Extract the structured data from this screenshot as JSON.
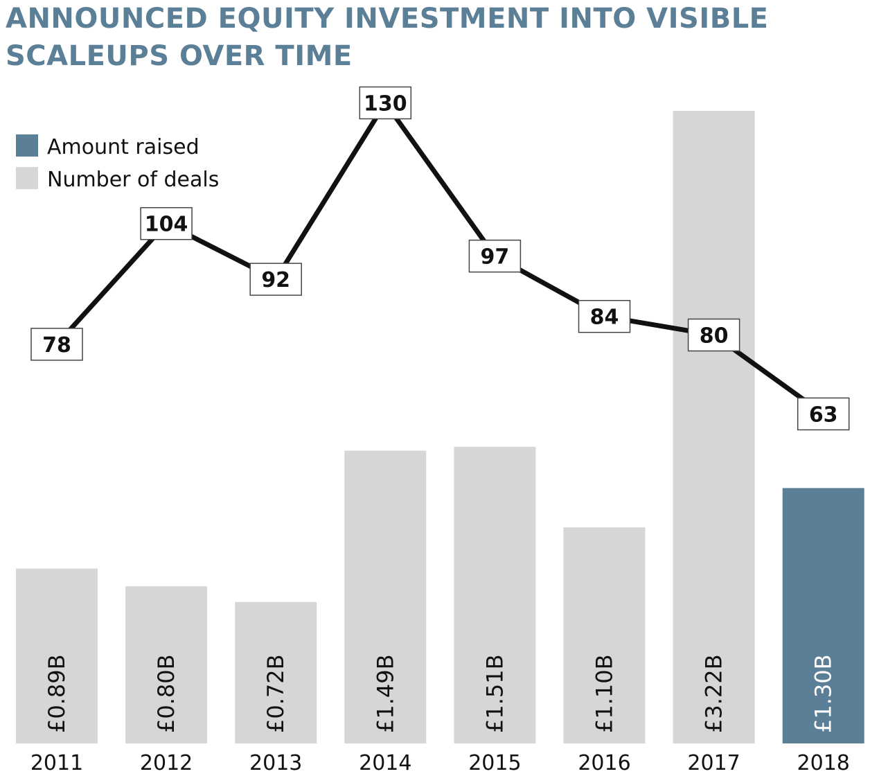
{
  "title": {
    "line1": "ANNOUNCED  EQUITY INVESTMENT INTO VISIBLE",
    "line2": "SCALEUPS OVER TIME"
  },
  "colors": {
    "title": "#5b7f96",
    "amount": "#5b7f96",
    "grey_bar": "#d6d6d6",
    "line": "#111111"
  },
  "chart_data": {
    "type": "bar",
    "categories": [
      "2011",
      "2012",
      "2013",
      "2014",
      "2015",
      "2016",
      "2017",
      "2018"
    ],
    "series": [
      {
        "name": "Amount raised",
        "type": "bar",
        "values": [
          0.89,
          0.8,
          0.72,
          1.49,
          1.51,
          1.1,
          3.22,
          1.3
        ],
        "labels": [
          "£0.89B",
          "£0.80B",
          "£0.72B",
          "£1.49B",
          "£1.51B",
          "£1.10B",
          "£3.22B",
          "£1.30B"
        ]
      },
      {
        "name": "Number of deals",
        "type": "line",
        "values": [
          78,
          104,
          92,
          130,
          97,
          84,
          80,
          63
        ]
      }
    ],
    "highlight_index": 7,
    "legend": {
      "position": "top-left",
      "items": [
        "Amount raised",
        "Number of deals"
      ]
    },
    "grid": false
  }
}
